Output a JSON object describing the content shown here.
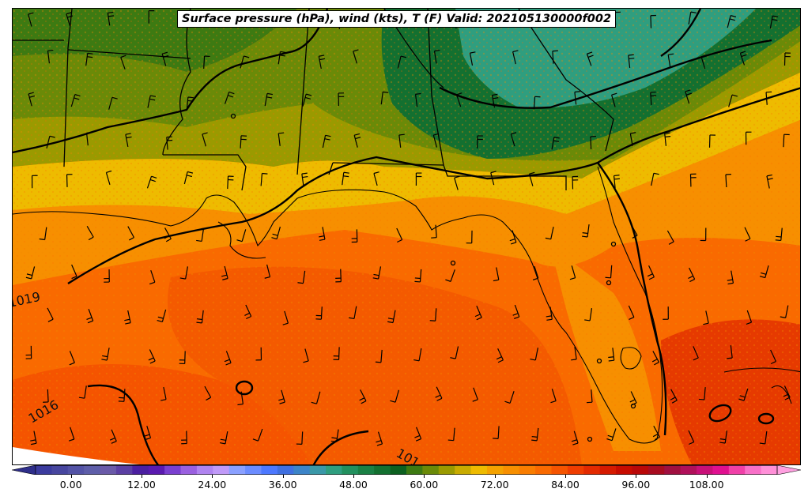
{
  "map": {
    "title": "Surface pressure (hPa), wind (kts), T (F) Valid: 202105130000f002",
    "isobar_labels": [
      "1019",
      "1016",
      "101"
    ]
  },
  "colorbar": {
    "tick_labels": [
      "0.00",
      "12.00",
      "24.00",
      "36.00",
      "48.00",
      "60.00",
      "72.00",
      "84.00",
      "96.00",
      "108.00"
    ],
    "min_value": -6,
    "max_value": 120,
    "step": 3,
    "colors": [
      "#3b3b9e",
      "#47469f",
      "#5353a6",
      "#5e5ea9",
      "#6a5aa8",
      "#5b3fa3",
      "#4b1fa0",
      "#5a1ab0",
      "#7a3fd0",
      "#9a60e0",
      "#b084f0",
      "#c09af8",
      "#8aa0ff",
      "#6b8cff",
      "#4c78ff",
      "#3f6fe0",
      "#3c84c8",
      "#3a98a8",
      "#2f9e7f",
      "#22905e",
      "#1a8044",
      "#137030",
      "#0c6020",
      "#3d7a12",
      "#6a8a08",
      "#9a9a00",
      "#c8ab00",
      "#eebb00",
      "#f4a200",
      "#f78f00",
      "#f97d00",
      "#f96a00",
      "#f55400",
      "#ef3d00",
      "#e32a00",
      "#d51a00",
      "#c70c00",
      "#b90808",
      "#a80c20",
      "#a01040",
      "#b0105a",
      "#c81078",
      "#e01090",
      "#f040a8",
      "#f870c8",
      "#ff90d8"
    ],
    "under_color": "#2e2e8a",
    "over_color": "#ffa0e0"
  },
  "legend_colors": {
    "cool_green": "#14743a",
    "warm_orange": "#f97d00",
    "hot_red": "#e63a00"
  }
}
